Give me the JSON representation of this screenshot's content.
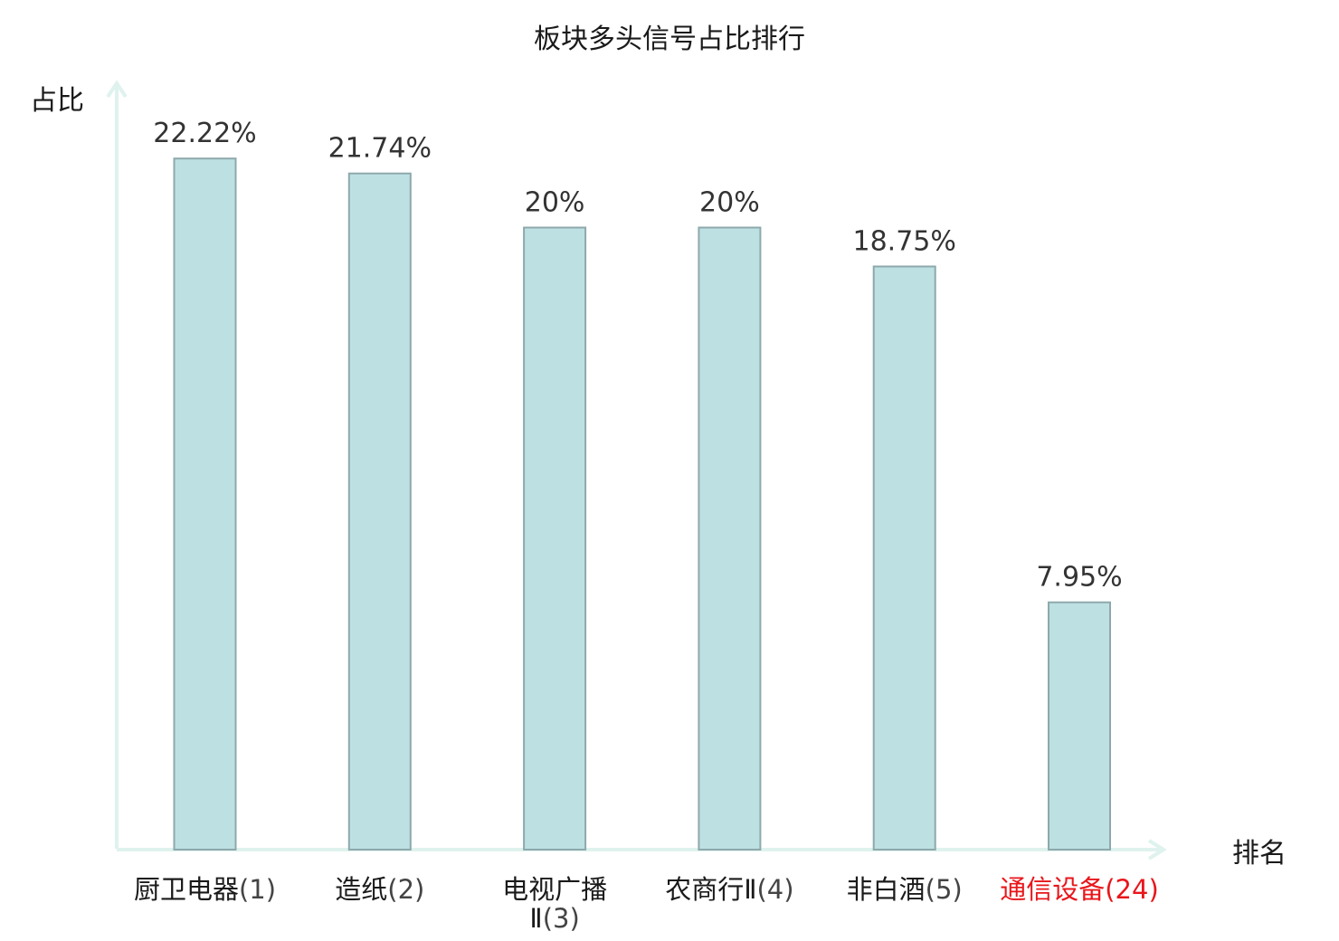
{
  "chart_data": {
    "type": "bar",
    "title": "板块多头信号占比排行",
    "xlabel": "排名",
    "ylabel": "占比",
    "categories": [
      {
        "name": "厨卫电器",
        "rank": "(1)",
        "highlight": false
      },
      {
        "name": "造纸",
        "rank": "(2)",
        "highlight": false
      },
      {
        "name": "电视广播Ⅱ",
        "rank": "(3)",
        "highlight": false
      },
      {
        "name": "农商行Ⅱ",
        "rank": "(4)",
        "highlight": false
      },
      {
        "name": "非白酒",
        "rank": "(5)",
        "highlight": false
      },
      {
        "name": "通信设备",
        "rank": "(24)",
        "highlight": true
      }
    ],
    "values": [
      22.22,
      21.74,
      20,
      20,
      18.75,
      7.95
    ],
    "value_labels": [
      "22.22%",
      "21.74%",
      "20%",
      "20%",
      "18.75%",
      "7.95%"
    ],
    "ylim": [
      0,
      24.64
    ],
    "grid": false,
    "colors": {
      "bar_fill": "#bde0e3",
      "bar_stroke": "#8ea9ab",
      "axis": "#dff2ee",
      "highlight_label": "#e8161b"
    }
  }
}
